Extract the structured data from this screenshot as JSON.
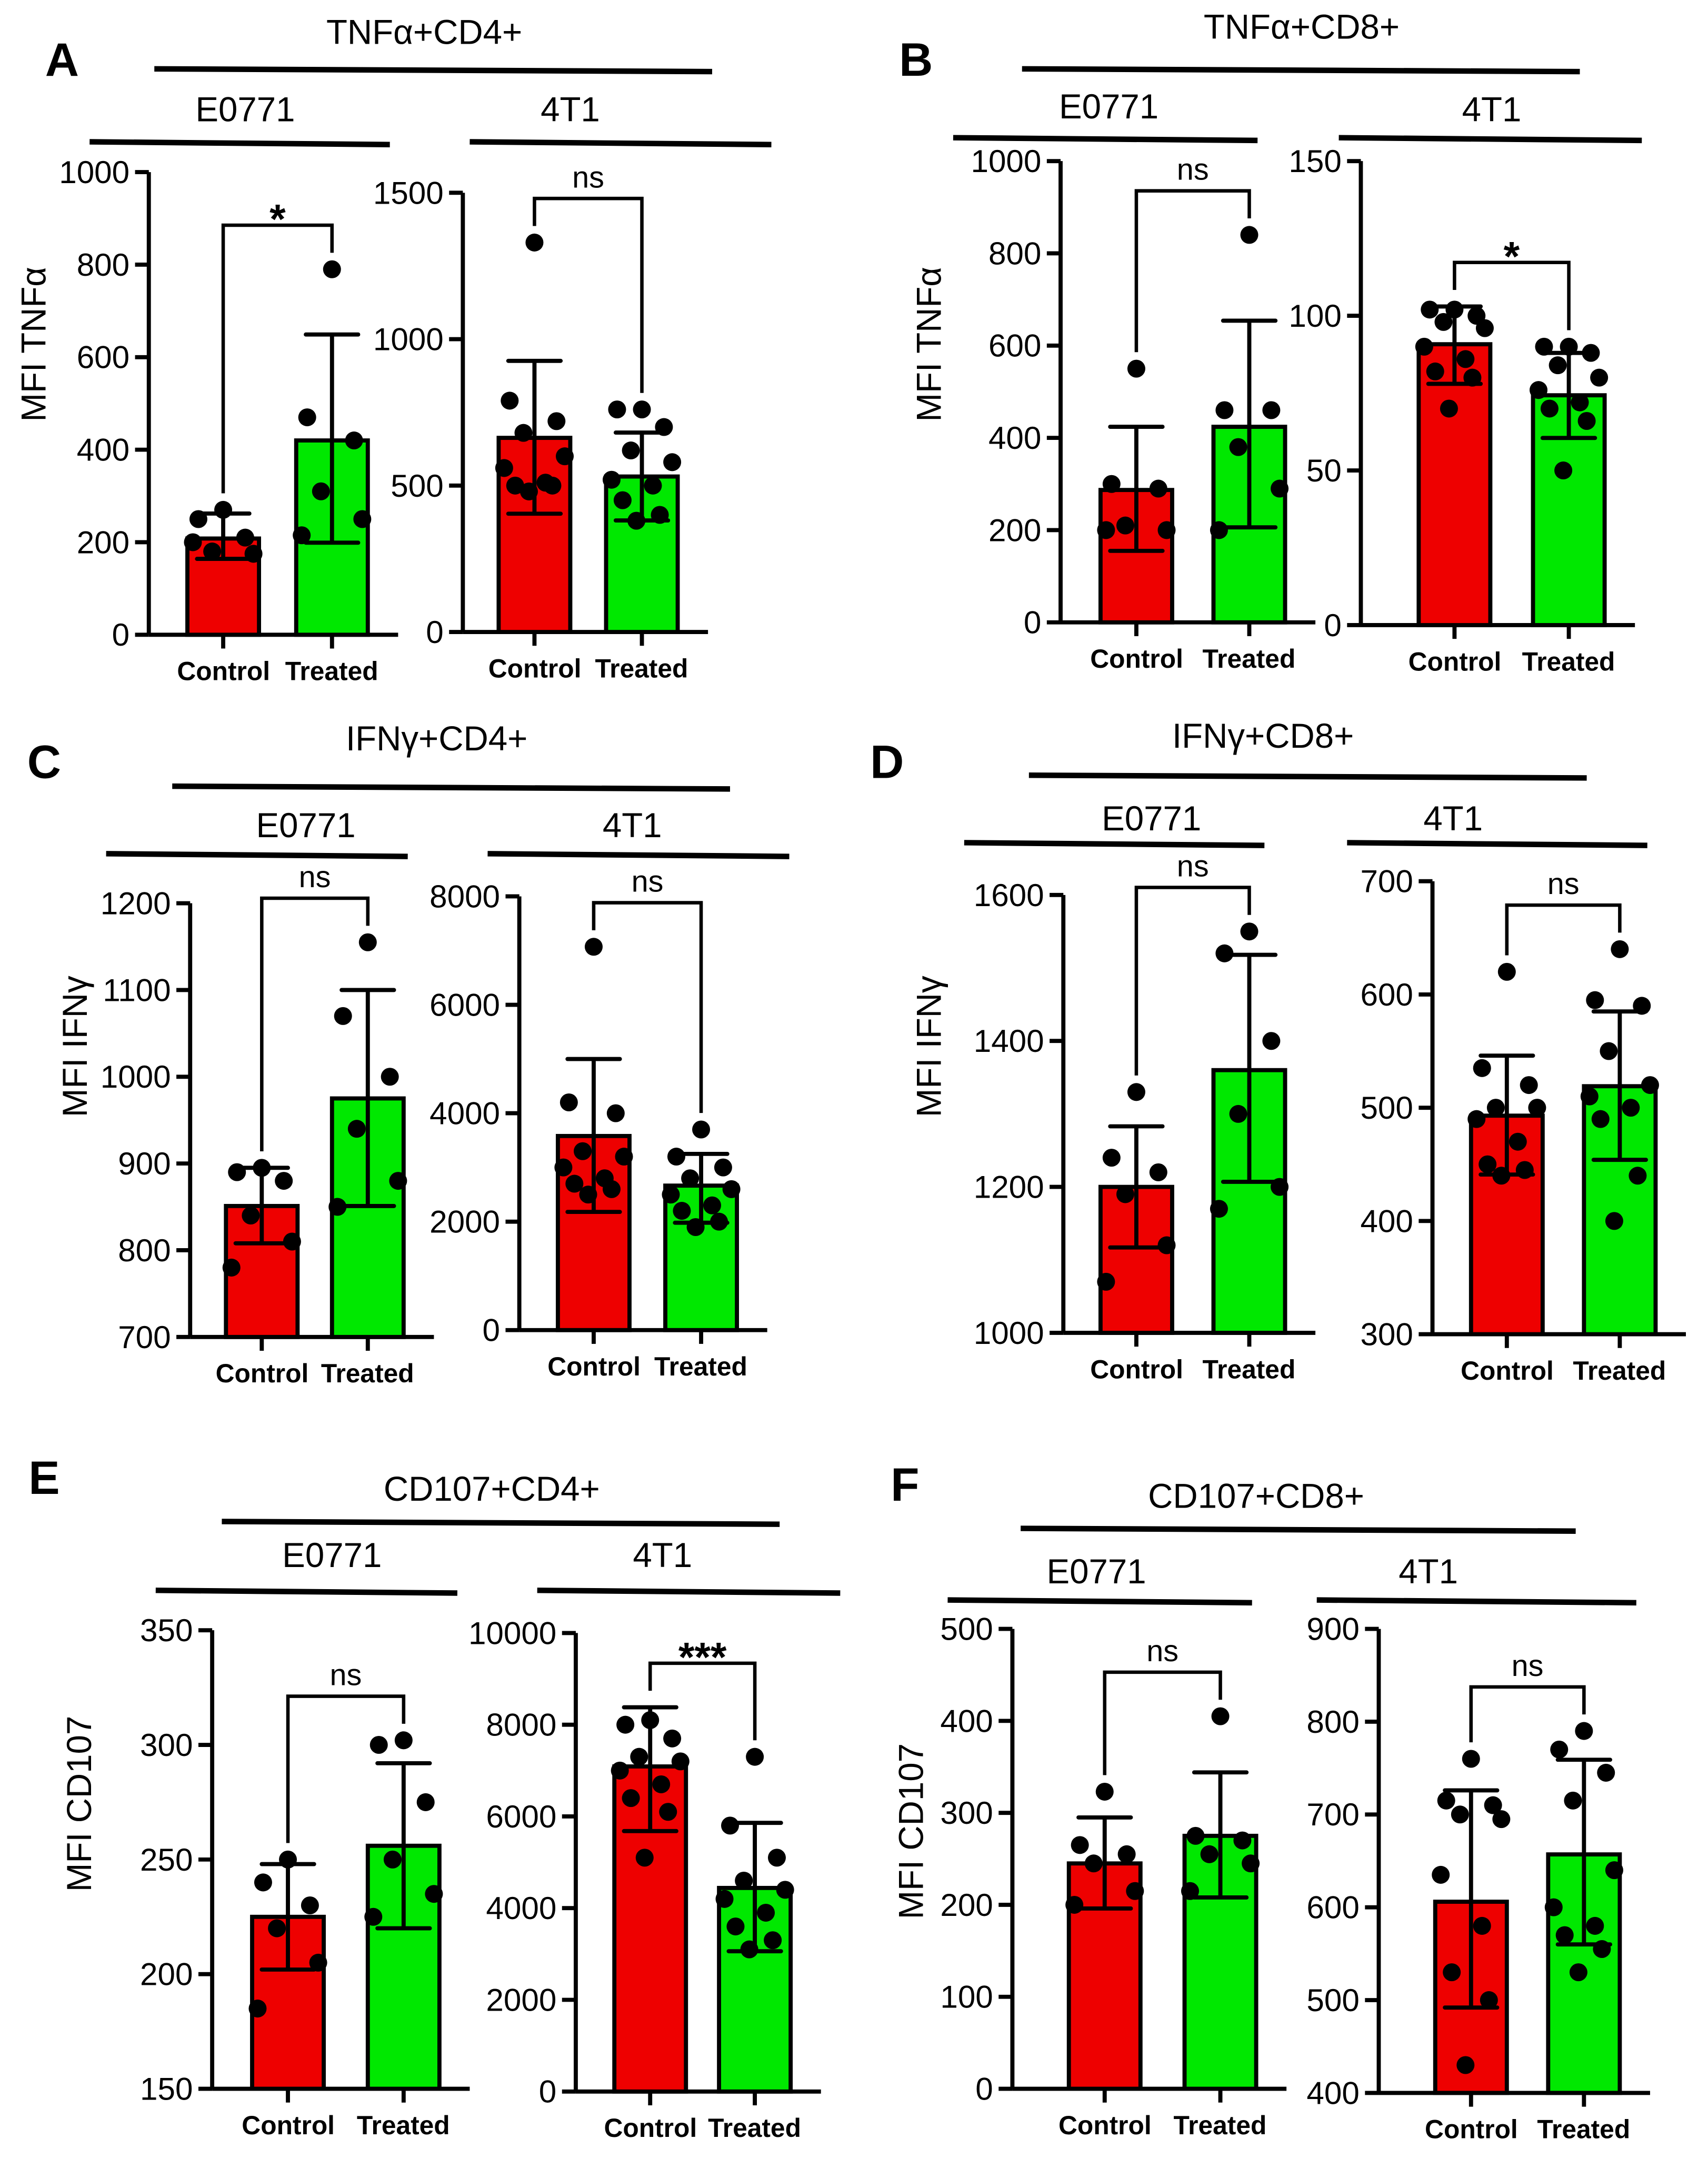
{
  "colors": {
    "control": "#ee0000",
    "treated": "#00e800"
  },
  "chart_data": [
    {
      "panel": "A",
      "title": "TNFα+CD4+",
      "group": "E0771",
      "type": "bar",
      "ylabel": "MFI TNFα",
      "ylim": [
        0,
        1000
      ],
      "yticks": [
        0,
        200,
        400,
        600,
        800,
        1000
      ],
      "categories": [
        "Control",
        "Treated"
      ],
      "means": [
        208,
        420
      ],
      "err_upper": [
        262,
        649
      ],
      "err_lower": [
        164,
        199
      ],
      "points": [
        [
          270,
          250,
          210,
          180,
          175,
          200
        ],
        [
          790,
          470,
          420,
          310,
          250,
          215
        ]
      ],
      "significance": "*"
    },
    {
      "panel": "A",
      "title": "TNFα+CD4+",
      "group": "4T1",
      "type": "bar",
      "ylabel": "",
      "ylim": [
        0,
        1500
      ],
      "yticks": [
        0,
        500,
        1000,
        1500
      ],
      "categories": [
        "Control",
        "Treated"
      ],
      "means": [
        663,
        531
      ],
      "err_upper": [
        926,
        681
      ],
      "err_lower": [
        404,
        381
      ],
      "points": [
        [
          1330,
          790,
          720,
          680,
          600,
          560,
          510,
          500,
          500,
          480
        ],
        [
          760,
          760,
          700,
          620,
          580,
          520,
          500,
          450,
          400,
          380
        ]
      ],
      "significance": "ns"
    },
    {
      "panel": "B",
      "title": "TNFα+CD8+",
      "group": "E0771",
      "type": "bar",
      "ylabel": "MFI TNFα",
      "ylim": [
        0,
        1000
      ],
      "yticks": [
        0,
        200,
        400,
        600,
        800,
        1000
      ],
      "categories": [
        "Control",
        "Treated"
      ],
      "means": [
        287,
        424
      ],
      "err_upper": [
        424,
        654
      ],
      "err_lower": [
        155,
        206
      ],
      "points": [
        [
          550,
          300,
          290,
          210,
          200,
          200
        ],
        [
          840,
          460,
          460,
          380,
          290,
          200
        ]
      ],
      "significance": "ns"
    },
    {
      "panel": "B",
      "title": "TNFα+CD8+",
      "group": "4T1",
      "type": "bar",
      "ylabel": "",
      "ylim": [
        0,
        150
      ],
      "yticks": [
        0,
        50,
        100,
        150
      ],
      "categories": [
        "Control",
        "Treated"
      ],
      "means": [
        90.8,
        74.3
      ],
      "err_upper": [
        103,
        88
      ],
      "err_lower": [
        78,
        60.5
      ],
      "points": [
        [
          102,
          102,
          100,
          98,
          96,
          90,
          86,
          82,
          80,
          70
        ],
        [
          90,
          90,
          88,
          84,
          80,
          76,
          72,
          70,
          66,
          50
        ]
      ],
      "significance": "*"
    },
    {
      "panel": "C",
      "title": "IFNγ+CD4+",
      "group": "E0771",
      "type": "bar",
      "ylabel": "MFI IFNγ",
      "ylim": [
        700,
        1200
      ],
      "yticks": [
        700,
        800,
        900,
        1000,
        1100,
        1200
      ],
      "categories": [
        "Control",
        "Treated"
      ],
      "means": [
        851,
        975
      ],
      "err_upper": [
        895,
        1100
      ],
      "err_lower": [
        808,
        851
      ],
      "points": [
        [
          895,
          890,
          880,
          840,
          810,
          780
        ],
        [
          1155,
          1070,
          1000,
          940,
          880,
          850
        ]
      ],
      "significance": "ns"
    },
    {
      "panel": "C",
      "title": "IFNγ+CD4+",
      "group": "4T1",
      "type": "bar",
      "ylabel": "",
      "ylim": [
        0,
        8000
      ],
      "yticks": [
        0,
        2000,
        4000,
        6000,
        8000
      ],
      "categories": [
        "Control",
        "Treated"
      ],
      "means": [
        3580,
        2665
      ],
      "err_upper": [
        5000,
        3250
      ],
      "err_lower": [
        2180,
        1980
      ],
      "points": [
        [
          7070,
          4200,
          4000,
          3300,
          3200,
          3000,
          2800,
          2700,
          2600,
          2500
        ],
        [
          3700,
          3200,
          3000,
          2800,
          2600,
          2500,
          2300,
          2200,
          2000,
          1900
        ]
      ],
      "significance": "ns"
    },
    {
      "panel": "D",
      "title": "IFNγ+CD8+",
      "group": "E0771",
      "type": "bar",
      "ylabel": "MFI IFNγ",
      "ylim": [
        1000,
        1600
      ],
      "yticks": [
        1000,
        1200,
        1400,
        1600
      ],
      "categories": [
        "Control",
        "Treated"
      ],
      "means": [
        1200,
        1360
      ],
      "err_upper": [
        1283,
        1518
      ],
      "err_lower": [
        1117,
        1207
      ],
      "points": [
        [
          1330,
          1240,
          1220,
          1190,
          1120,
          1070
        ],
        [
          1550,
          1520,
          1400,
          1300,
          1200,
          1170
        ]
      ],
      "significance": "ns"
    },
    {
      "panel": "D",
      "title": "IFNγ+CD8+",
      "group": "4T1",
      "type": "bar",
      "ylabel": "",
      "ylim": [
        300,
        700
      ],
      "yticks": [
        300,
        400,
        500,
        600,
        700
      ],
      "categories": [
        "Control",
        "Treated"
      ],
      "means": [
        493,
        519
      ],
      "err_upper": [
        546,
        585
      ],
      "err_lower": [
        441,
        454
      ],
      "points": [
        [
          620,
          535,
          520,
          500,
          500,
          490,
          470,
          450,
          445,
          440
        ],
        [
          640,
          595,
          590,
          550,
          520,
          510,
          500,
          490,
          440,
          400
        ]
      ],
      "significance": "ns"
    },
    {
      "panel": "E",
      "title": "CD107+CD4+",
      "group": "E0771",
      "type": "bar",
      "ylabel": "MFI CD107",
      "ylim": [
        150,
        350
      ],
      "yticks": [
        150,
        200,
        250,
        300,
        350
      ],
      "categories": [
        "Control",
        "Treated"
      ],
      "means": [
        225,
        256
      ],
      "err_upper": [
        248,
        292
      ],
      "err_lower": [
        202,
        220
      ],
      "points": [
        [
          250,
          240,
          230,
          220,
          205,
          185
        ],
        [
          302,
          300,
          275,
          250,
          235,
          225
        ]
      ],
      "significance": "ns"
    },
    {
      "panel": "E",
      "title": "CD107+CD4+",
      "group": "4T1",
      "type": "bar",
      "ylabel": "",
      "ylim": [
        0,
        10000
      ],
      "yticks": [
        0,
        2000,
        4000,
        6000,
        8000,
        10000
      ],
      "categories": [
        "Control",
        "Treated"
      ],
      "means": [
        7090,
        4440
      ],
      "err_upper": [
        8380,
        5860
      ],
      "err_lower": [
        5680,
        3060
      ],
      "points": [
        [
          8100,
          8000,
          7700,
          7300,
          7200,
          7000,
          6700,
          6400,
          6100,
          5100
        ],
        [
          7300,
          5800,
          5100,
          4600,
          4400,
          4200,
          3900,
          3600,
          3300,
          3100
        ]
      ],
      "significance": "***"
    },
    {
      "panel": "F",
      "title": "CD107+CD8+",
      "group": "E0771",
      "type": "bar",
      "ylabel": "MFI CD107",
      "ylim": [
        0,
        500
      ],
      "yticks": [
        0,
        100,
        200,
        300,
        400,
        500
      ],
      "categories": [
        "Control",
        "Treated"
      ],
      "means": [
        245,
        275
      ],
      "err_upper": [
        295,
        344
      ],
      "err_lower": [
        196,
        208
      ],
      "points": [
        [
          323,
          265,
          255,
          245,
          215,
          200
        ],
        [
          405,
          275,
          270,
          255,
          245,
          215
        ]
      ],
      "significance": "ns"
    },
    {
      "panel": "F",
      "title": "CD107+CD8+",
      "group": "4T1",
      "type": "bar",
      "ylabel": "",
      "ylim": [
        400,
        900
      ],
      "yticks": [
        400,
        500,
        600,
        700,
        800,
        900
      ],
      "categories": [
        "Control",
        "Treated"
      ],
      "means": [
        606,
        657
      ],
      "err_upper": [
        726,
        759
      ],
      "err_lower": [
        492,
        560
      ],
      "points": [
        [
          760,
          715,
          710,
          700,
          695,
          635,
          580,
          530,
          500,
          430
        ],
        [
          790,
          770,
          745,
          715,
          640,
          600,
          580,
          570,
          555,
          530
        ]
      ],
      "significance": "ns"
    }
  ]
}
